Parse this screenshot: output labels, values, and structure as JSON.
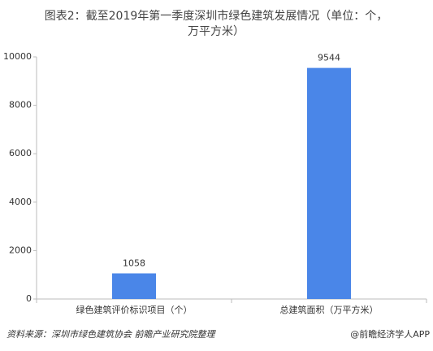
{
  "chart_data": {
    "type": "bar",
    "title": [
      "图表2：截至2019年第一季度深圳市绿色建筑发展情况（单位：个，",
      "万平方米）"
    ],
    "categories": [
      "绿色建筑评价标识项目（个）",
      "总建筑面积（万平方米）"
    ],
    "values": [
      1058,
      9544
    ],
    "color": "#4a86e8",
    "ylim": [
      0,
      10000
    ],
    "yticks": [
      0,
      2000,
      4000,
      6000,
      8000,
      10000
    ],
    "grid": false,
    "source": "资料来源：深圳市绿色建筑协会  前瞻产业研究院整理",
    "credit": "@前瞻经济学人APP"
  }
}
